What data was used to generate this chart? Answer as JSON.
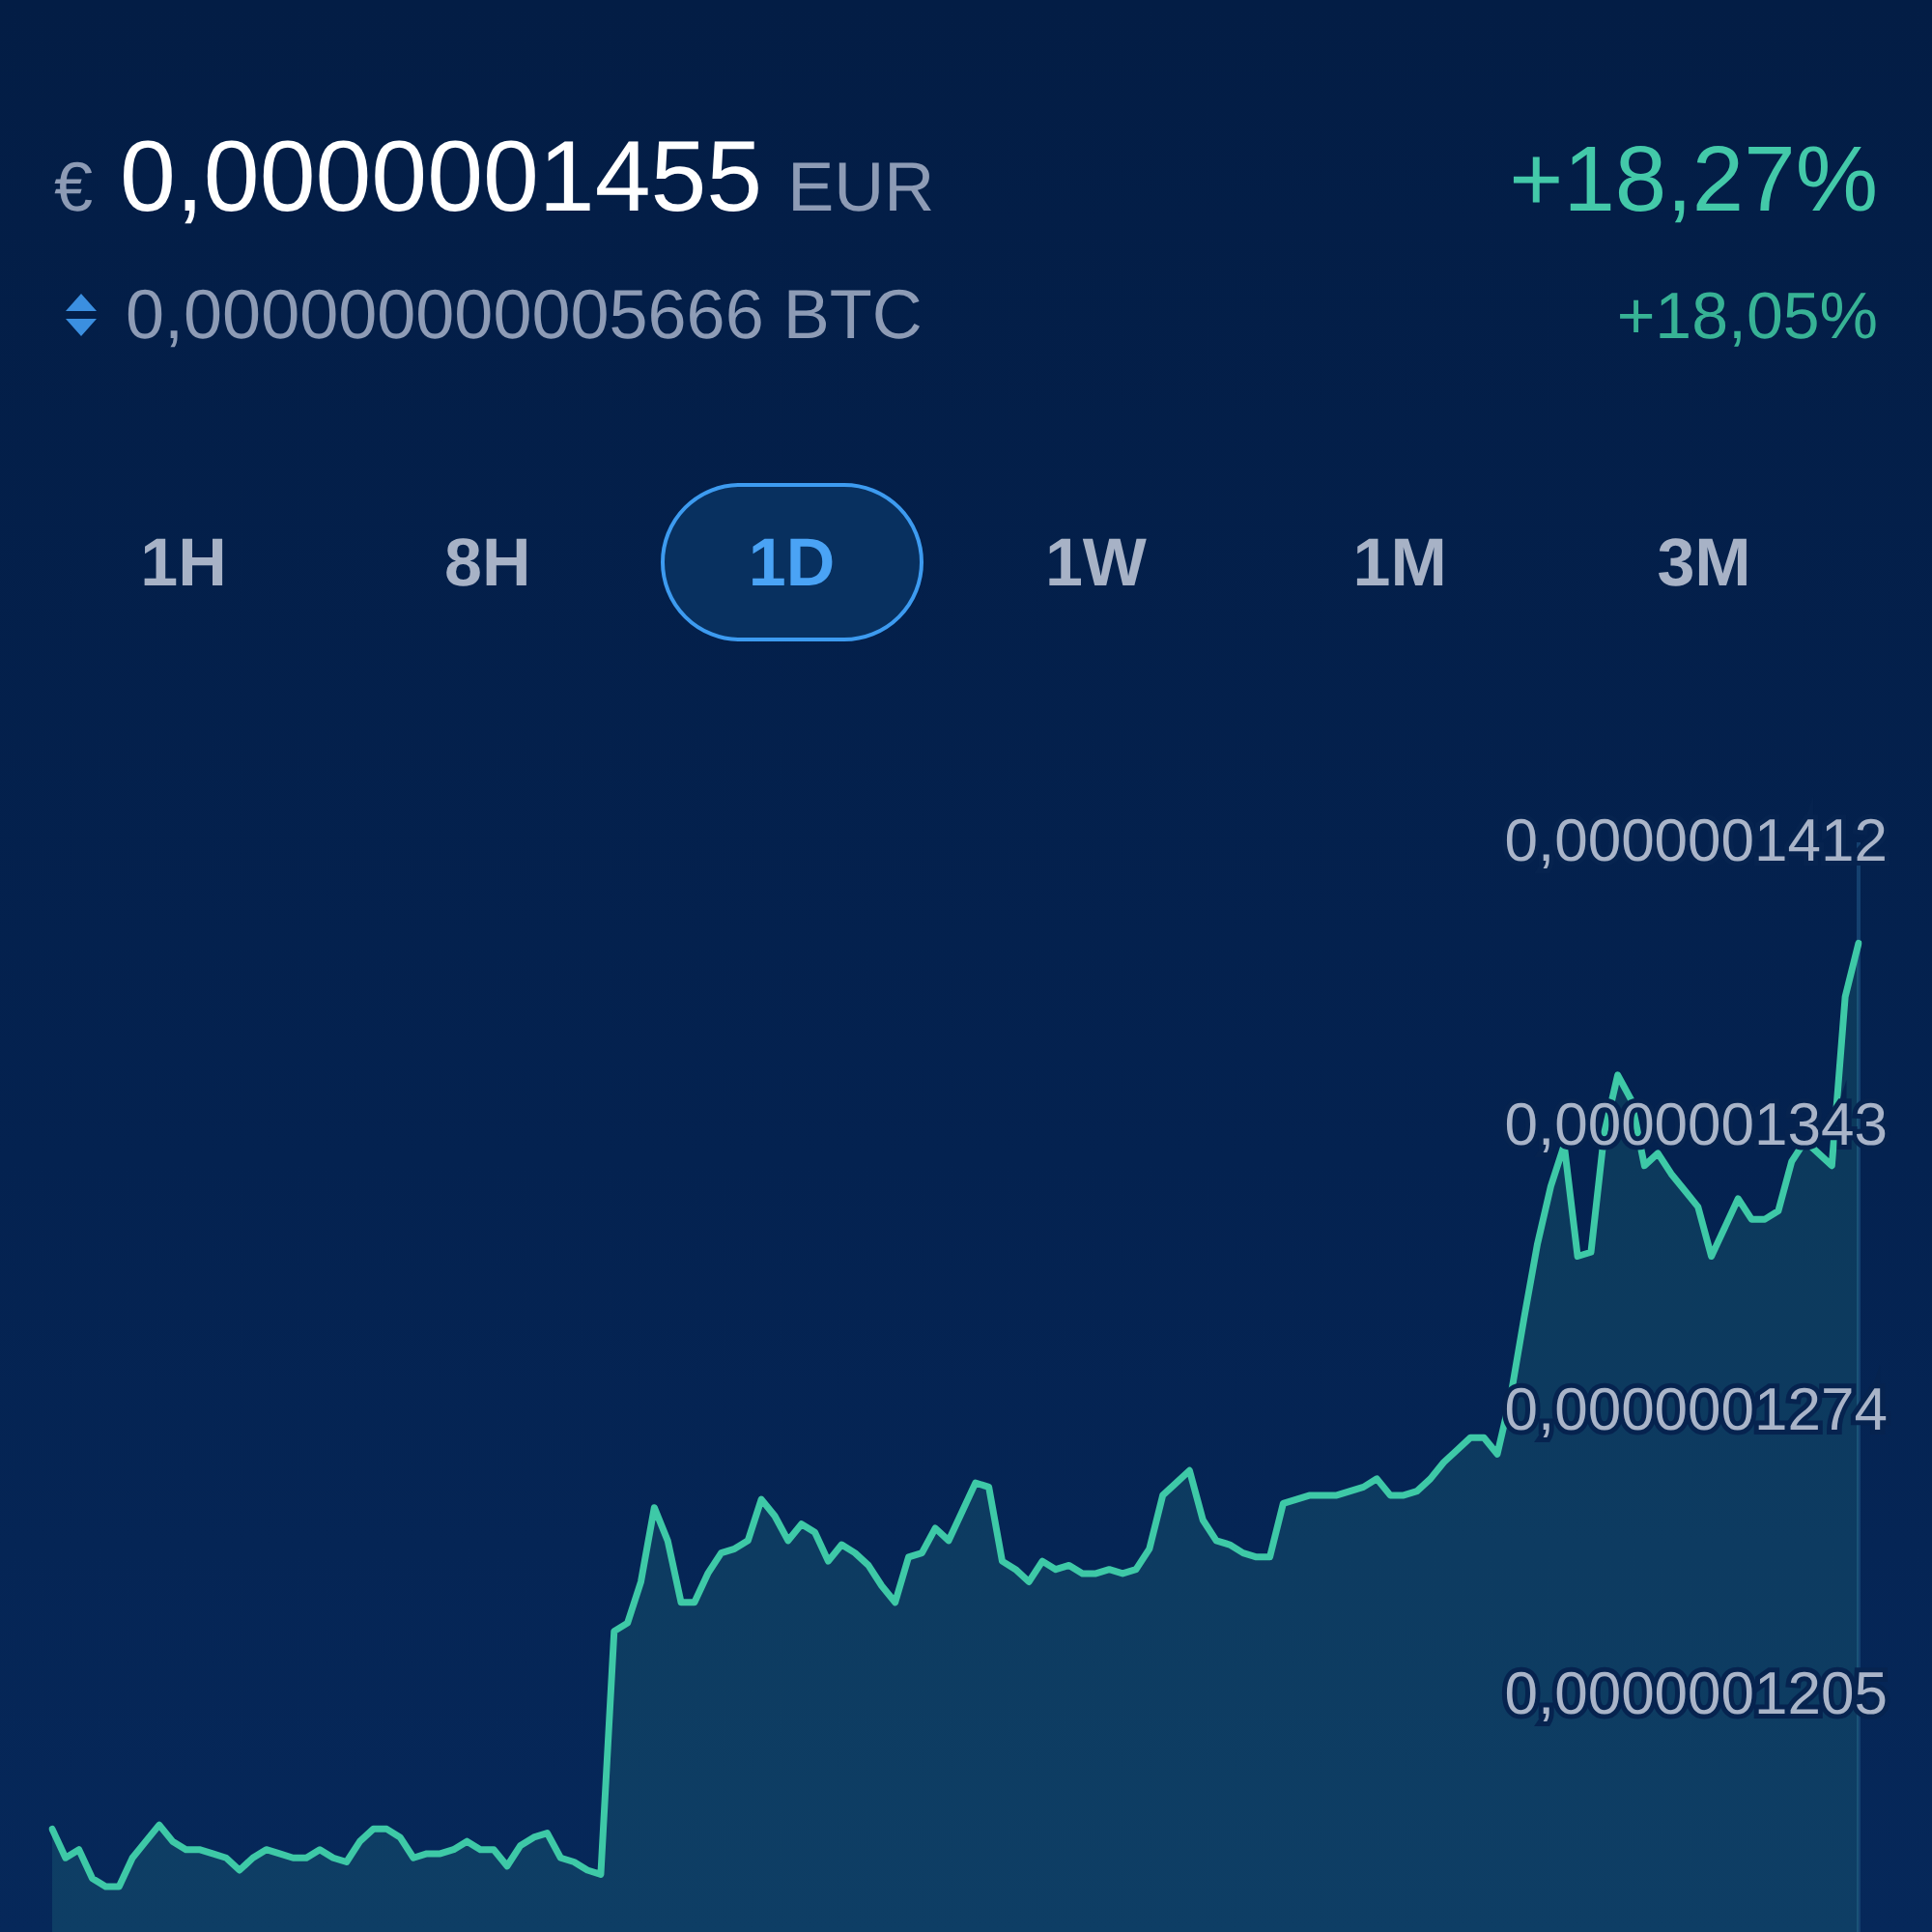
{
  "chart_data": {
    "type": "area",
    "title": "€ 0,0000001455 EUR",
    "subtitle": "0,000000000005666 BTC",
    "annotations": [
      "+18,27%",
      "+18,05%",
      "1H",
      "8H",
      "1D",
      "1W",
      "1M",
      "3M"
    ],
    "categories": [
      null,
      null,
      null,
      null,
      null,
      null,
      null,
      null,
      null,
      null,
      null,
      null,
      null,
      null,
      null,
      null,
      null,
      null,
      null,
      null,
      null,
      null,
      null,
      null,
      null,
      null,
      null,
      null,
      null,
      null,
      null,
      null,
      null,
      null,
      null,
      null,
      null,
      null,
      null,
      null,
      null,
      null,
      null,
      null,
      null,
      null,
      null,
      null,
      null,
      null,
      null,
      null,
      null,
      null,
      null,
      null,
      null,
      null,
      null,
      null,
      null,
      null,
      null,
      null,
      null,
      null,
      null,
      null,
      null,
      null,
      null,
      null,
      null,
      null,
      null,
      null,
      null,
      null,
      null,
      null,
      null,
      null,
      null,
      null,
      null,
      null,
      null,
      null,
      null,
      null,
      null,
      null,
      null,
      null,
      null,
      null,
      null,
      null,
      null,
      null,
      null,
      null,
      null,
      null,
      null,
      null,
      null,
      null,
      null,
      null,
      null,
      null,
      null,
      null,
      null,
      null,
      null,
      null,
      null,
      null,
      null,
      null,
      null,
      null,
      null,
      null,
      null,
      null,
      null,
      null,
      null,
      null,
      null,
      null,
      null,
      null
    ],
    "series": [
      {
        "color": "#3ec9a7",
        "values": [
          1.173e-07,
          1.166e-07,
          1.168e-07,
          1.161e-07,
          1.159e-07,
          1.159e-07,
          1.166e-07,
          1.17e-07,
          1.174e-07,
          1.17e-07,
          1.168e-07,
          1.168e-07,
          1.167e-07,
          1.166e-07,
          1.163e-07,
          1.166e-07,
          1.168e-07,
          1.167e-07,
          1.166e-07,
          1.166e-07,
          1.168e-07,
          1.166e-07,
          1.165e-07,
          1.17e-07,
          1.173e-07,
          1.173e-07,
          1.171e-07,
          1.166e-07,
          1.167e-07,
          1.167e-07,
          1.168e-07,
          1.17e-07,
          1.168e-07,
          1.168e-07,
          1.164e-07,
          1.169e-07,
          1.171e-07,
          1.172e-07,
          1.166e-07,
          1.165e-07,
          1.163e-07,
          1.162e-07,
          1.221e-07,
          1.223e-07,
          1.233e-07,
          1.251e-07,
          1.243e-07,
          1.228e-07,
          1.228e-07,
          1.235e-07,
          1.24e-07,
          1.241e-07,
          1.243e-07,
          1.253e-07,
          1.249e-07,
          1.243e-07,
          1.247e-07,
          1.245e-07,
          1.238e-07,
          1.242e-07,
          1.24e-07,
          1.237e-07,
          1.232e-07,
          1.228e-07,
          1.239e-07,
          1.24e-07,
          1.246e-07,
          1.243e-07,
          1.25e-07,
          1.257e-07,
          1.256e-07,
          1.238e-07,
          1.236e-07,
          1.233e-07,
          1.238e-07,
          1.236e-07,
          1.237e-07,
          1.235e-07,
          1.235e-07,
          1.236e-07,
          1.235e-07,
          1.236e-07,
          1.241e-07,
          1.254e-07,
          1.257e-07,
          1.26e-07,
          1.248e-07,
          1.243e-07,
          1.242e-07,
          1.24e-07,
          1.239e-07,
          1.239e-07,
          1.252e-07,
          1.253e-07,
          1.254e-07,
          1.254e-07,
          1.254e-07,
          1.255e-07,
          1.256e-07,
          1.258e-07,
          1.254e-07,
          1.254e-07,
          1.255e-07,
          1.258e-07,
          1.262e-07,
          1.265e-07,
          1.268e-07,
          1.268e-07,
          1.264e-07,
          1.278e-07,
          1.297e-07,
          1.315e-07,
          1.329e-07,
          1.339e-07,
          1.312e-07,
          1.313e-07,
          1.342e-07,
          1.356e-07,
          1.35e-07,
          1.334e-07,
          1.337e-07,
          1.332e-07,
          1.328e-07,
          1.324e-07,
          1.312e-07,
          1.319e-07,
          1.326e-07,
          1.321e-07,
          1.321e-07,
          1.323e-07,
          1.335e-07,
          1.34e-07,
          1.337e-07,
          1.334e-07,
          1.375e-07,
          1.388e-07
        ]
      }
    ],
    "ylim": [
      1.148e-07,
      1.412e-07
    ],
    "yticks": [
      {
        "value": 1.205e-07,
        "label": "0,0000001205"
      },
      {
        "value": 1.274e-07,
        "label": "0,0000001274"
      },
      {
        "value": 1.343e-07,
        "label": "0,0000001343"
      },
      {
        "value": 1.412e-07,
        "label": "0,0000001412"
      }
    ],
    "tick_labels": "y",
    "marker": "none"
  }
}
